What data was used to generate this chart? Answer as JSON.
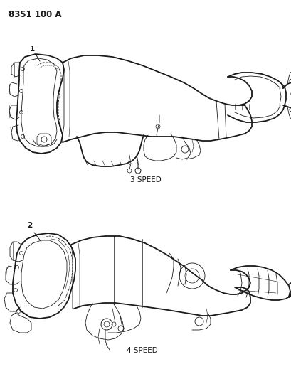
{
  "title_code": "8351 100 A",
  "background_color": "#ffffff",
  "line_color": "#1a1a1a",
  "label_1": "1",
  "label_2": "2",
  "caption_top": "3 SPEED",
  "caption_bottom": "4 SPEED",
  "fig_width": 4.1,
  "fig_height": 5.33,
  "dpi": 100,
  "title_fontsize": 8.5,
  "caption_fontsize": 7.5,
  "label_fontsize": 7.5
}
